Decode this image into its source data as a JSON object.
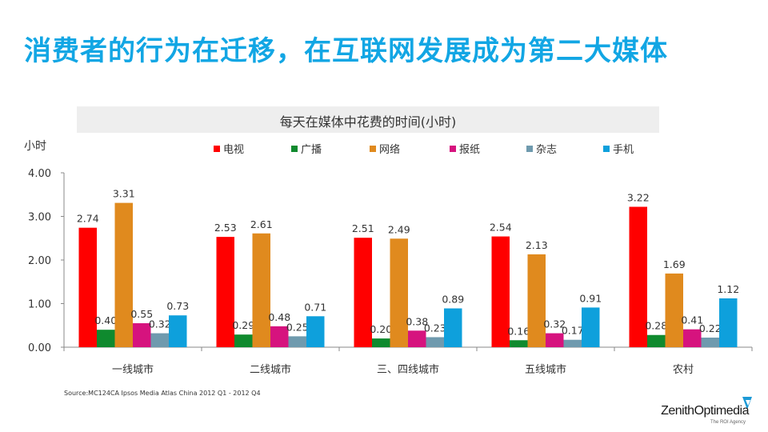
{
  "header": {
    "title": "消费者的行为在迁移，在互联网发展成为第二大媒体"
  },
  "chart_data": {
    "type": "bar",
    "title": "每天在媒体中花费的时间(小时)",
    "ylabel": "小时",
    "xlabel": "",
    "ylim": [
      0,
      4
    ],
    "yticks": [
      "0.00",
      "1.00",
      "2.00",
      "3.00",
      "4.00"
    ],
    "categories": [
      "一线城市",
      "二线城市",
      "三、四线城市",
      "五线城市",
      "农村"
    ],
    "series": [
      {
        "name": "电视",
        "color": "#ff0000",
        "values": [
          2.74,
          2.53,
          2.51,
          2.54,
          3.22
        ]
      },
      {
        "name": "广播",
        "color": "#0f8a2e",
        "values": [
          0.4,
          0.29,
          0.2,
          0.16,
          0.28
        ]
      },
      {
        "name": "网络",
        "color": "#e08a1e",
        "values": [
          3.31,
          2.61,
          2.49,
          2.13,
          1.69
        ]
      },
      {
        "name": "报纸",
        "color": "#d6137e",
        "values": [
          0.55,
          0.48,
          0.38,
          0.32,
          0.41
        ]
      },
      {
        "name": "杂志",
        "color": "#6f9aae",
        "values": [
          0.32,
          0.25,
          0.23,
          0.17,
          0.22
        ]
      },
      {
        "name": "手机",
        "color": "#0ea0dc",
        "values": [
          0.73,
          0.71,
          0.89,
          0.91,
          1.12
        ]
      }
    ],
    "legend": "top"
  },
  "footer": {
    "source": "Source:MC124CA Ipsos Media Atlas China 2012 Q1 - 2012 Q4",
    "logo": "ZenithOptimedia",
    "logo_tagline": "The ROI Agency"
  }
}
